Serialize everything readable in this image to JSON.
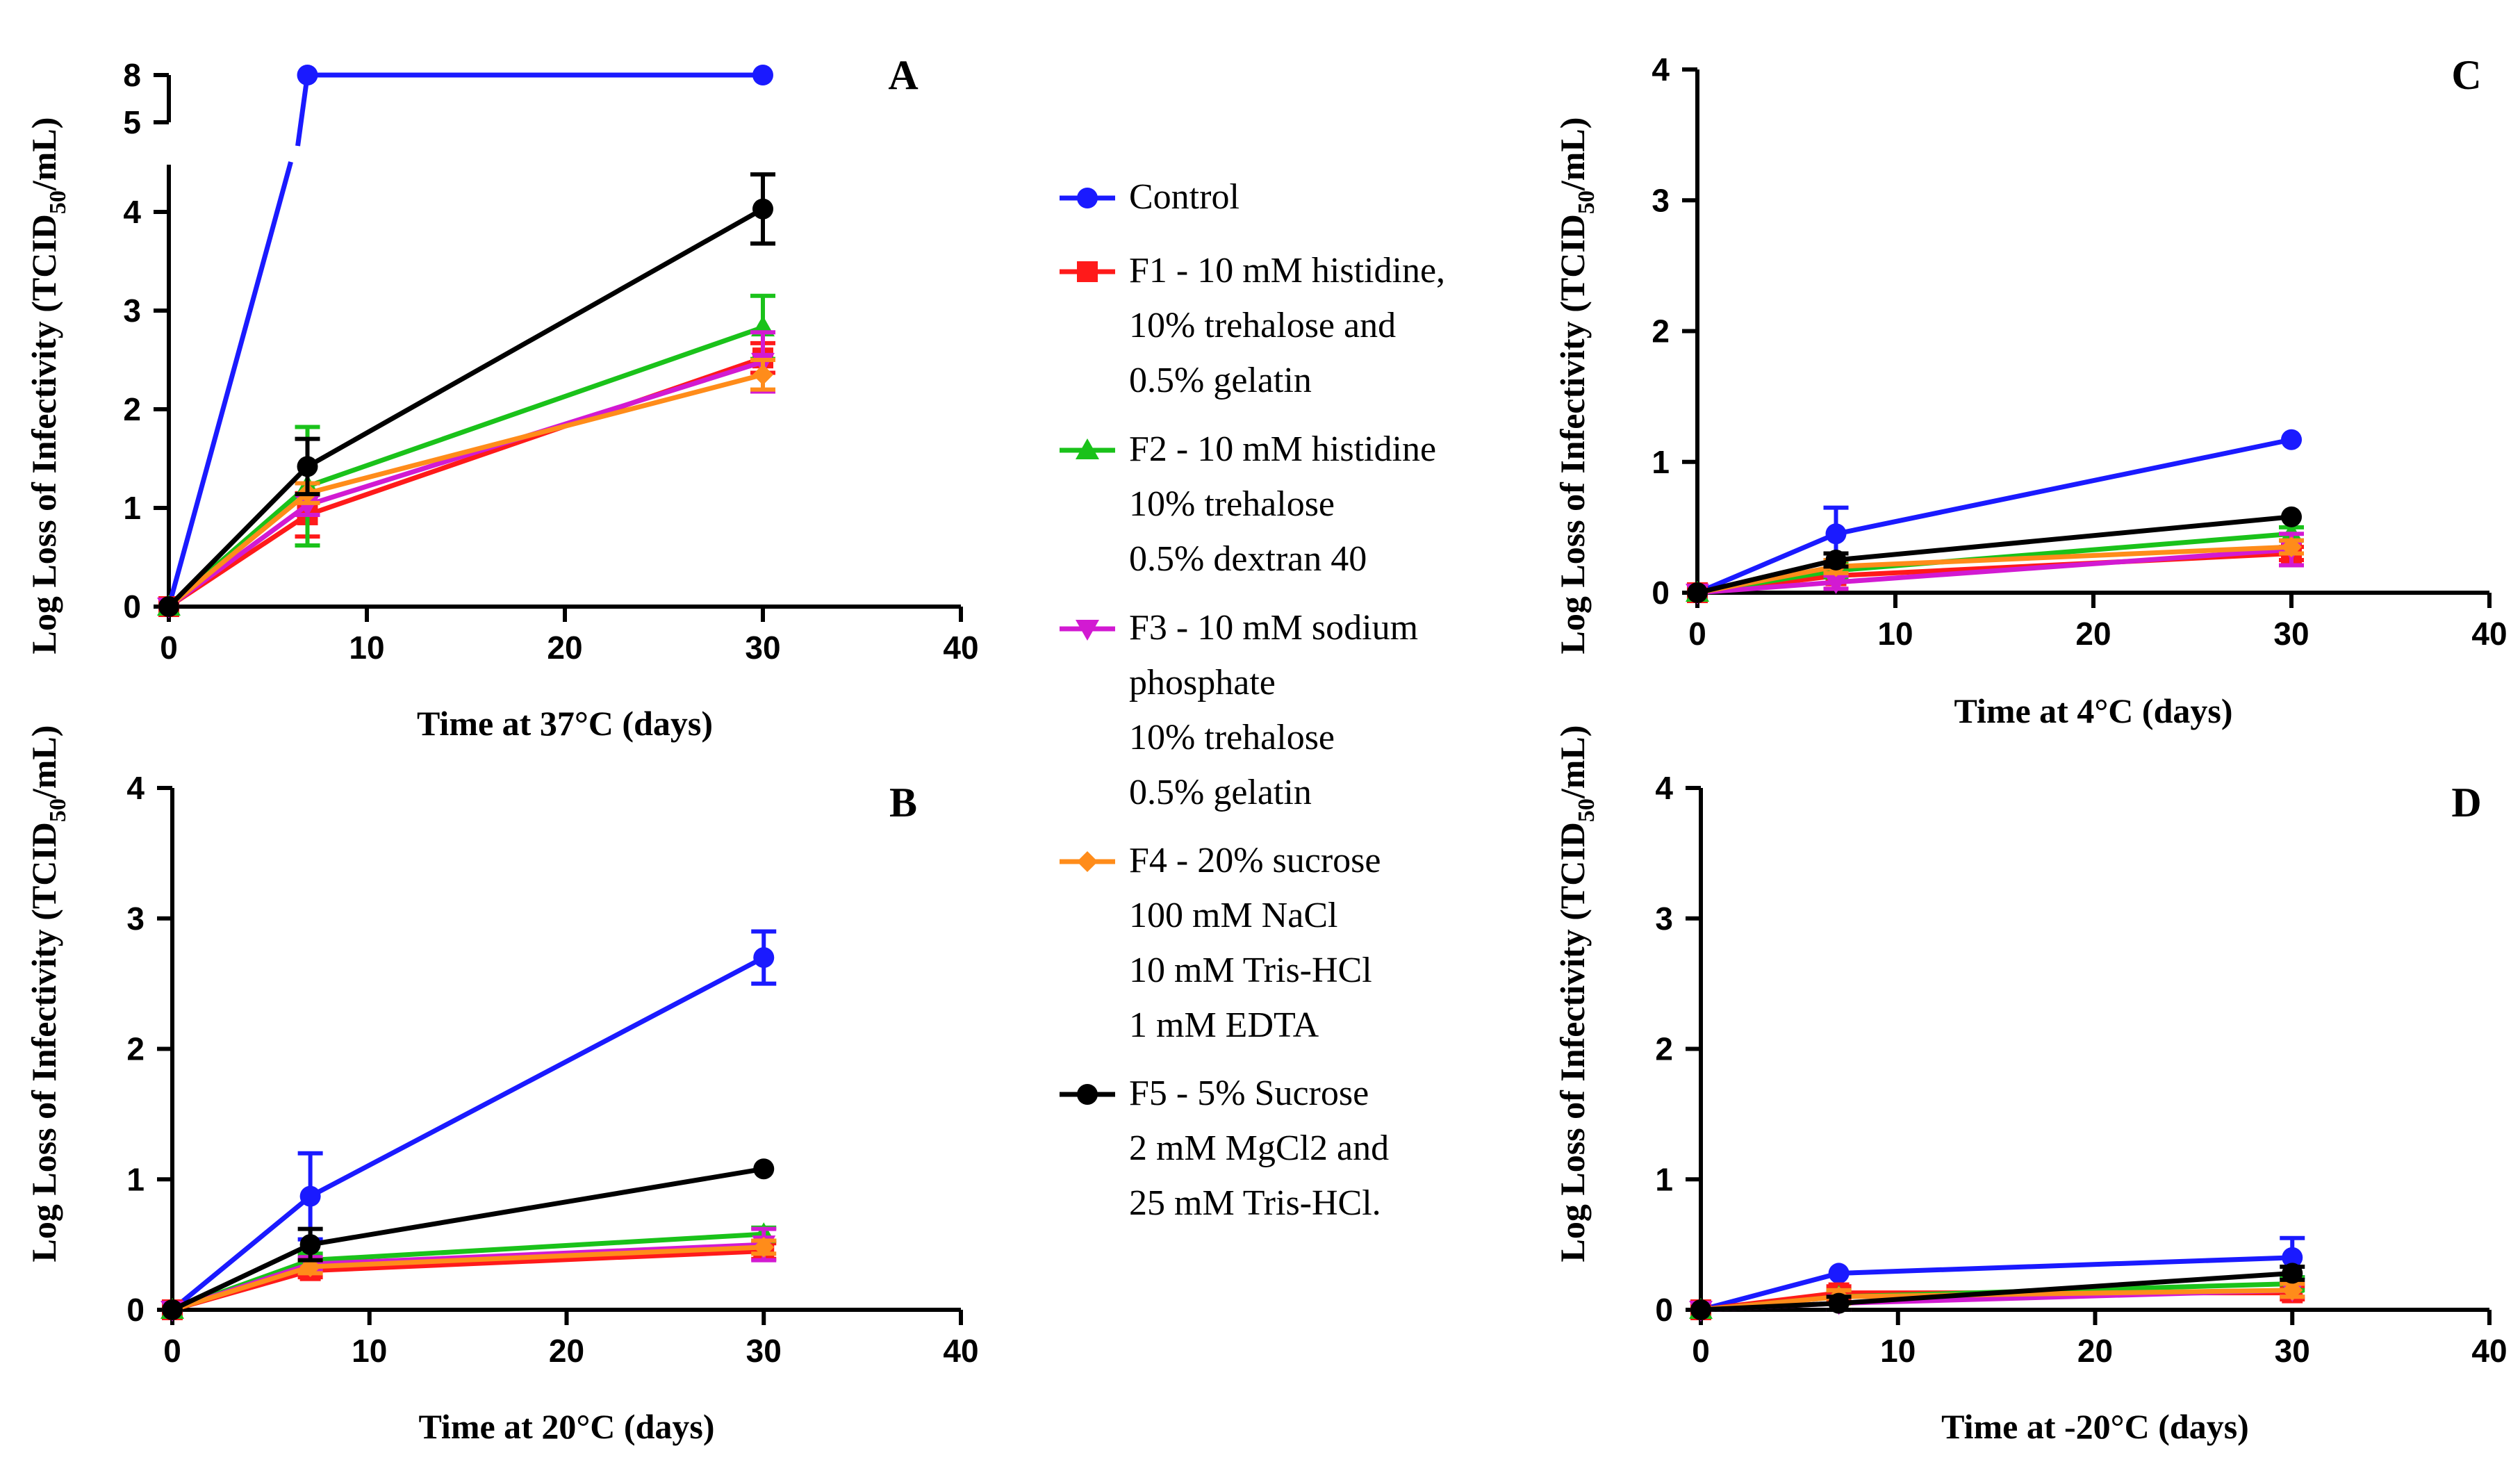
{
  "chart_data": [
    {
      "panel": "A",
      "type": "line",
      "xlabel": "Time at 37°C (days)",
      "ylabel": "Log Loss of Infectivity (TCID50/mL)",
      "xlim": [
        0,
        40
      ],
      "ylim": [
        0,
        4.4
      ],
      "xticks": [
        "0",
        "10",
        "20",
        "30",
        "40"
      ],
      "yticks": [
        "0",
        "1",
        "2",
        "3",
        "4"
      ],
      "broken_axis_ticks": [
        "5",
        "8"
      ],
      "x": [
        0,
        7,
        30
      ],
      "series": [
        {
          "name": "Control",
          "values": [
            0,
            8,
            8
          ],
          "errors": [
            0,
            0,
            0
          ],
          "broken": true
        },
        {
          "name": "F1 - 10 mM histidine, 10% trehalose and 0.5% gelatin",
          "values": [
            0,
            0.93,
            2.52
          ],
          "errors": [
            0,
            0.22,
            0.15
          ]
        },
        {
          "name": "F2 - 10 mM histidine 10% trehalose 0.5% dextran 40",
          "values": [
            0,
            1.22,
            2.83
          ],
          "errors": [
            0,
            0.6,
            0.32
          ]
        },
        {
          "name": "F3 - 10 mM sodium phosphate 10% trehalose 0.5% gelatin",
          "values": [
            0,
            1.03,
            2.48
          ],
          "errors": [
            0,
            0.1,
            0.3
          ]
        },
        {
          "name": "F4 - 20% sucrose 100 mM NaCl 10 mM Tris-HCl 1 mM EDTA",
          "values": [
            0,
            1.15,
            2.35
          ],
          "errors": [
            0,
            0.1,
            0.15
          ]
        },
        {
          "name": "F5 - 5% Sucrose 2 mM MgCl2 and 25 mM Tris-HCl.",
          "values": [
            0,
            1.42,
            4.03
          ],
          "errors": [
            0,
            0.28,
            0.35
          ]
        }
      ]
    },
    {
      "panel": "B",
      "type": "line",
      "xlabel": "Time at 20°C (days)",
      "ylabel": "Log Loss of Infectivity (TCID50/mL)",
      "xlim": [
        0,
        40
      ],
      "ylim": [
        0,
        4
      ],
      "xticks": [
        "0",
        "10",
        "20",
        "30",
        "40"
      ],
      "yticks": [
        "0",
        "1",
        "2",
        "3",
        "4"
      ],
      "x": [
        0,
        7,
        30
      ],
      "series": [
        {
          "name": "Control",
          "values": [
            0,
            0.87,
            2.7
          ],
          "errors": [
            0,
            0.33,
            0.2
          ]
        },
        {
          "name": "F1",
          "values": [
            0,
            0.3,
            0.45
          ],
          "errors": [
            0,
            0.05,
            0.06
          ]
        },
        {
          "name": "F2",
          "values": [
            0,
            0.38,
            0.58
          ],
          "errors": [
            0,
            0.05,
            0.05
          ]
        },
        {
          "name": "F3",
          "values": [
            0,
            0.35,
            0.5
          ],
          "errors": [
            0,
            0.05,
            0.12
          ]
        },
        {
          "name": "F4",
          "values": [
            0,
            0.33,
            0.48
          ],
          "errors": [
            0,
            0.05,
            0.05
          ]
        },
        {
          "name": "F5",
          "values": [
            0,
            0.5,
            1.08
          ],
          "errors": [
            0,
            0.12,
            0.0
          ]
        }
      ]
    },
    {
      "panel": "C",
      "type": "line",
      "xlabel": "Time at 4°C (days)",
      "ylabel": "Log Loss of Infectivity (TCID50/mL)",
      "xlim": [
        0,
        40
      ],
      "ylim": [
        0,
        4
      ],
      "xticks": [
        "0",
        "10",
        "20",
        "30",
        "40"
      ],
      "yticks": [
        "0",
        "1",
        "2",
        "3",
        "4"
      ],
      "x": [
        0,
        7,
        30
      ],
      "series": [
        {
          "name": "Control",
          "values": [
            0,
            0.45,
            1.17
          ],
          "errors": [
            0,
            0.2,
            0.0
          ]
        },
        {
          "name": "F1",
          "values": [
            0,
            0.13,
            0.3
          ],
          "errors": [
            0,
            0.1,
            0.05
          ]
        },
        {
          "name": "F2",
          "values": [
            0,
            0.17,
            0.45
          ],
          "errors": [
            0,
            0.05,
            0.05
          ]
        },
        {
          "name": "F3",
          "values": [
            0,
            0.08,
            0.33
          ],
          "errors": [
            0,
            0.05,
            0.12
          ]
        },
        {
          "name": "F4",
          "values": [
            0,
            0.2,
            0.35
          ],
          "errors": [
            0,
            0.05,
            0.05
          ]
        },
        {
          "name": "F5",
          "values": [
            0,
            0.25,
            0.58
          ],
          "errors": [
            0,
            0.05,
            0.0
          ]
        }
      ]
    },
    {
      "panel": "D",
      "type": "line",
      "xlabel": "Time at -20°C (days)",
      "ylabel": "Log Loss of Infectivity (TCID50/mL)",
      "xlim": [
        0,
        40
      ],
      "ylim": [
        0,
        4
      ],
      "xticks": [
        "0",
        "10",
        "20",
        "30",
        "40"
      ],
      "yticks": [
        "0",
        "1",
        "2",
        "3",
        "4"
      ],
      "x": [
        0,
        7,
        30
      ],
      "series": [
        {
          "name": "Control",
          "values": [
            0,
            0.28,
            0.4
          ],
          "errors": [
            0,
            0.0,
            0.15
          ]
        },
        {
          "name": "F1",
          "values": [
            0,
            0.13,
            0.13
          ],
          "errors": [
            0,
            0.05,
            0.05
          ]
        },
        {
          "name": "F2",
          "values": [
            0,
            0.1,
            0.2
          ],
          "errors": [
            0,
            0.05,
            0.05
          ]
        },
        {
          "name": "F3",
          "values": [
            0,
            0.05,
            0.15
          ],
          "errors": [
            0,
            0.05,
            0.05
          ]
        },
        {
          "name": "F4",
          "values": [
            0,
            0.1,
            0.15
          ],
          "errors": [
            0,
            0.05,
            0.05
          ]
        },
        {
          "name": "F5",
          "values": [
            0,
            0.05,
            0.28
          ],
          "errors": [
            0,
            0.05,
            0.05
          ]
        }
      ]
    }
  ],
  "legend": [
    {
      "key": "control",
      "color": "#1a1aff",
      "marker": "circle",
      "lines": [
        "Control"
      ]
    },
    {
      "key": "f1",
      "color": "#ff1a1a",
      "marker": "square",
      "lines": [
        "F1 - 10 mM histidine,",
        "10% trehalose and",
        "0.5% gelatin"
      ]
    },
    {
      "key": "f2",
      "color": "#1ac21a",
      "marker": "triangle-up",
      "lines": [
        "F2 - 10 mM histidine",
        "10% trehalose",
        "0.5% dextran 40"
      ]
    },
    {
      "key": "f3",
      "color": "#d21ad2",
      "marker": "triangle-down",
      "lines": [
        "F3 - 10 mM sodium",
        "phosphate",
        "10% trehalose",
        "0.5% gelatin"
      ]
    },
    {
      "key": "f4",
      "color": "#ff8c1a",
      "marker": "diamond",
      "lines": [
        "F4 - 20% sucrose",
        "100 mM NaCl",
        "10 mM Tris-HCl",
        "1 mM EDTA"
      ]
    },
    {
      "key": "f5",
      "color": "#000000",
      "marker": "circle",
      "lines": [
        "F5 - 5% Sucrose",
        "2 mM MgCl2 and",
        "25 mM Tris-HCl."
      ]
    }
  ],
  "ylabel_parts": {
    "main": "Log Loss of Infectivity (TCID",
    "sub": "50",
    "tail": "/mL)"
  }
}
